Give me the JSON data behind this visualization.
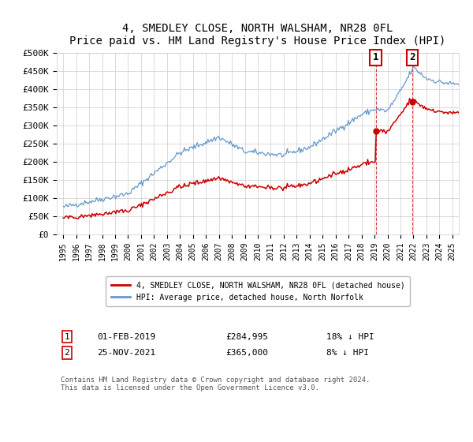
{
  "title": "4, SMEDLEY CLOSE, NORTH WALSHAM, NR28 0FL",
  "subtitle": "Price paid vs. HM Land Registry's House Price Index (HPI)",
  "ylim": [
    0,
    500000
  ],
  "yticks": [
    0,
    50000,
    100000,
    150000,
    200000,
    250000,
    300000,
    350000,
    400000,
    450000,
    500000
  ],
  "ytick_labels": [
    "£0",
    "£50K",
    "£100K",
    "£150K",
    "£200K",
    "£250K",
    "£300K",
    "£350K",
    "£400K",
    "£450K",
    "£500K"
  ],
  "hpi_color": "#6699cc",
  "price_color": "#cc0000",
  "sale1_date_x": 2019.09,
  "sale1_price": 284995,
  "sale2_date_x": 2021.9,
  "sale2_price": 365000,
  "sale1_label": "01-FEB-2019",
  "sale1_amount": "£284,995",
  "sale1_pct": "18% ↓ HPI",
  "sale2_label": "25-NOV-2021",
  "sale2_amount": "£365,000",
  "sale2_pct": "8% ↓ HPI",
  "legend_line1": "4, SMEDLEY CLOSE, NORTH WALSHAM, NR28 0FL (detached house)",
  "legend_line2": "HPI: Average price, detached house, North Norfolk",
  "footer": "Contains HM Land Registry data © Crown copyright and database right 2024.\nThis data is licensed under the Open Government Licence v3.0.",
  "xlim_start": 1994.5,
  "xlim_end": 2025.5,
  "xtick_years": [
    1995,
    1996,
    1997,
    1998,
    1999,
    2000,
    2001,
    2002,
    2003,
    2004,
    2005,
    2006,
    2007,
    2008,
    2009,
    2010,
    2011,
    2012,
    2013,
    2014,
    2015,
    2016,
    2017,
    2018,
    2019,
    2020,
    2021,
    2022,
    2023,
    2024,
    2025
  ],
  "background_color": "#ffffff",
  "grid_color": "#cccccc",
  "hpi_milestones": {
    "1995": 75000,
    "2000": 112000,
    "2004": 225000,
    "2007": 268000,
    "2009": 228000,
    "2012": 218000,
    "2014": 240000,
    "2016": 285000,
    "2018": 330000,
    "2019": 345000,
    "2020": 340000,
    "2021": 395000,
    "2022": 460000,
    "2023": 430000,
    "2024": 420000,
    "2025": 415000
  }
}
